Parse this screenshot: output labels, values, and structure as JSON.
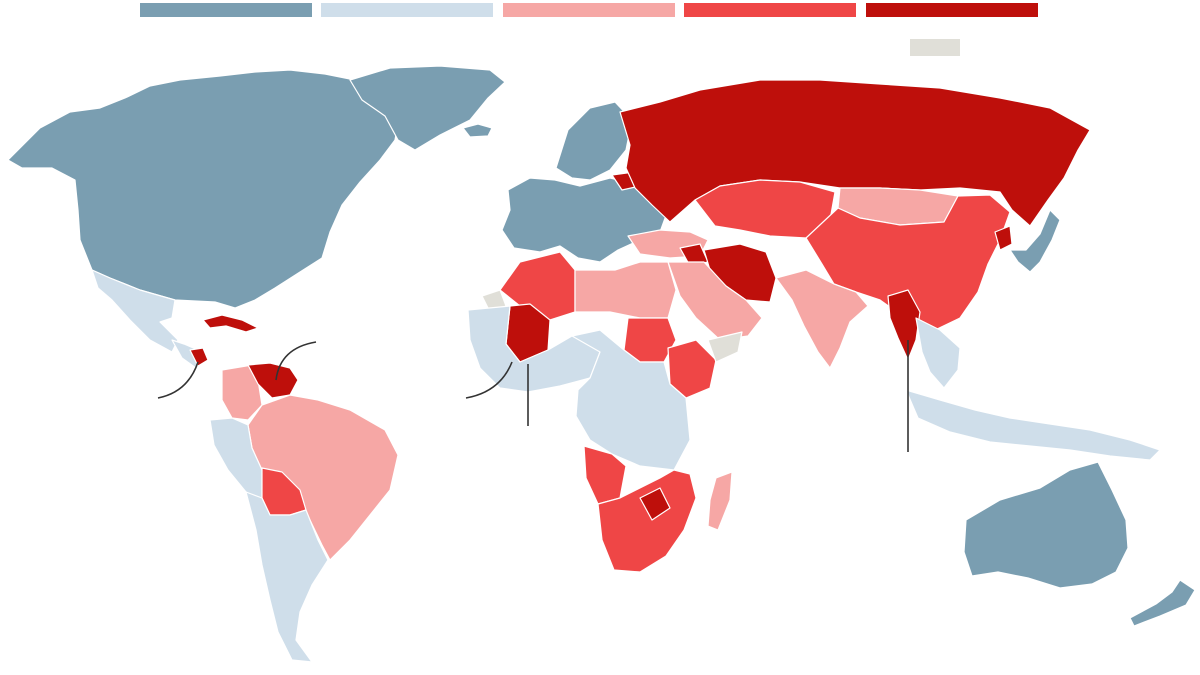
{
  "map": {
    "projection": "world",
    "background": "#ffffff",
    "ocean_color": "#ffffff",
    "border_color": "#ffffff",
    "legend": {
      "categories": [
        {
          "id": "c1",
          "color": "#7a9eb1"
        },
        {
          "id": "c2",
          "color": "#cfdeea"
        },
        {
          "id": "c3",
          "color": "#f6a7a5"
        },
        {
          "id": "c4",
          "color": "#ef4646"
        },
        {
          "id": "c5",
          "color": "#be0f0b"
        }
      ],
      "no_data": {
        "id": "nd",
        "color": "#e0dfd8"
      }
    },
    "regions": [
      {
        "name": "north-america",
        "category": "c1"
      },
      {
        "name": "greenland",
        "category": "c1"
      },
      {
        "name": "iceland",
        "category": "c1"
      },
      {
        "name": "western-europe",
        "category": "c1"
      },
      {
        "name": "scandinavia",
        "category": "c1"
      },
      {
        "name": "mexico",
        "category": "c2"
      },
      {
        "name": "central-america",
        "category": "c2"
      },
      {
        "name": "nicaragua",
        "category": "c5"
      },
      {
        "name": "cuba",
        "category": "c5"
      },
      {
        "name": "venezuela",
        "category": "c5"
      },
      {
        "name": "colombia",
        "category": "c3"
      },
      {
        "name": "brazil",
        "category": "c3"
      },
      {
        "name": "peru",
        "category": "c2"
      },
      {
        "name": "bolivia",
        "category": "c4"
      },
      {
        "name": "argentina-chile",
        "category": "c2"
      },
      {
        "name": "russia",
        "category": "c5"
      },
      {
        "name": "belarus",
        "category": "c5"
      },
      {
        "name": "kazakhstan",
        "category": "c4"
      },
      {
        "name": "mongolia",
        "category": "c3"
      },
      {
        "name": "china",
        "category": "c4"
      },
      {
        "name": "north-korea",
        "category": "c5"
      },
      {
        "name": "japan-korea",
        "category": "c1"
      },
      {
        "name": "iran",
        "category": "c5"
      },
      {
        "name": "syria",
        "category": "c5"
      },
      {
        "name": "india",
        "category": "c3"
      },
      {
        "name": "myanmar",
        "category": "c5"
      },
      {
        "name": "southeast-asia",
        "category": "c2"
      },
      {
        "name": "indonesia",
        "category": "c2"
      },
      {
        "name": "australia",
        "category": "c1"
      },
      {
        "name": "new-zealand",
        "category": "c1"
      },
      {
        "name": "algeria",
        "category": "c4"
      },
      {
        "name": "libya-egypt",
        "category": "c3"
      },
      {
        "name": "mali",
        "category": "c5"
      },
      {
        "name": "west-africa",
        "category": "c2"
      },
      {
        "name": "sudan",
        "category": "c4"
      },
      {
        "name": "ethiopia",
        "category": "c4"
      },
      {
        "name": "central-africa",
        "category": "c2"
      },
      {
        "name": "angola",
        "category": "c4"
      },
      {
        "name": "southern-africa",
        "category": "c4"
      },
      {
        "name": "zimbabwe",
        "category": "c5"
      },
      {
        "name": "madagascar",
        "category": "c3"
      },
      {
        "name": "arabian-peninsula",
        "category": "c3"
      },
      {
        "name": "turkey",
        "category": "c3"
      },
      {
        "name": "somalia",
        "category": "nd"
      },
      {
        "name": "western-sahara",
        "category": "nd"
      }
    ]
  }
}
